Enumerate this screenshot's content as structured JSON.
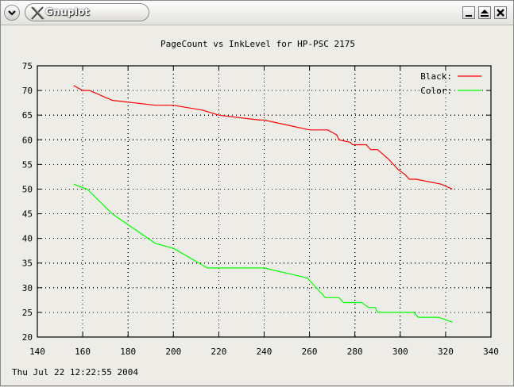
{
  "window": {
    "title": "Gnuplot",
    "controls": [
      "minimize-icon",
      "maximize-icon",
      "close-icon"
    ]
  },
  "plot": {
    "timestamp": "Thu Jul 22 12:22:55 2004"
  },
  "chart_data": {
    "type": "line",
    "title": "PageCount vs InkLevel for HP-PSC 2175",
    "xlabel": "",
    "ylabel": "",
    "xlim": [
      140,
      340
    ],
    "ylim": [
      20,
      75
    ],
    "xticks": [
      140,
      160,
      180,
      200,
      220,
      240,
      260,
      280,
      300,
      320,
      340
    ],
    "yticks": [
      20,
      25,
      30,
      35,
      40,
      45,
      50,
      55,
      60,
      65,
      70,
      75
    ],
    "grid": true,
    "legend_position": "top-right",
    "series": [
      {
        "name": "Black:",
        "color": "#ff0000",
        "x": [
          156,
          160,
          163,
          173,
          192,
          200,
          213,
          220,
          238,
          240,
          260,
          265,
          268,
          272,
          273,
          278,
          279,
          283,
          285,
          286,
          287,
          288,
          290,
          295,
          299,
          302,
          303,
          304,
          307,
          318,
          323
        ],
        "y": [
          71,
          70,
          70,
          68,
          67,
          67,
          66,
          65,
          64,
          64,
          62,
          62,
          62,
          61,
          60,
          59.5,
          59,
          59,
          59,
          58.5,
          58,
          58,
          58,
          56,
          54,
          53,
          52.5,
          52,
          52,
          51,
          50
        ]
      },
      {
        "name": "Color:",
        "color": "#00ff00",
        "x": [
          156,
          162,
          173,
          192,
          200,
          215,
          238,
          240,
          259,
          267,
          270,
          273,
          275,
          280,
          283,
          286,
          289,
          290,
          306,
          308,
          317,
          323
        ],
        "y": [
          51,
          50,
          45,
          39,
          38,
          34,
          34,
          34,
          32,
          28,
          28,
          28,
          27,
          27,
          27,
          26,
          26,
          25,
          25,
          24,
          24,
          23
        ]
      }
    ]
  }
}
